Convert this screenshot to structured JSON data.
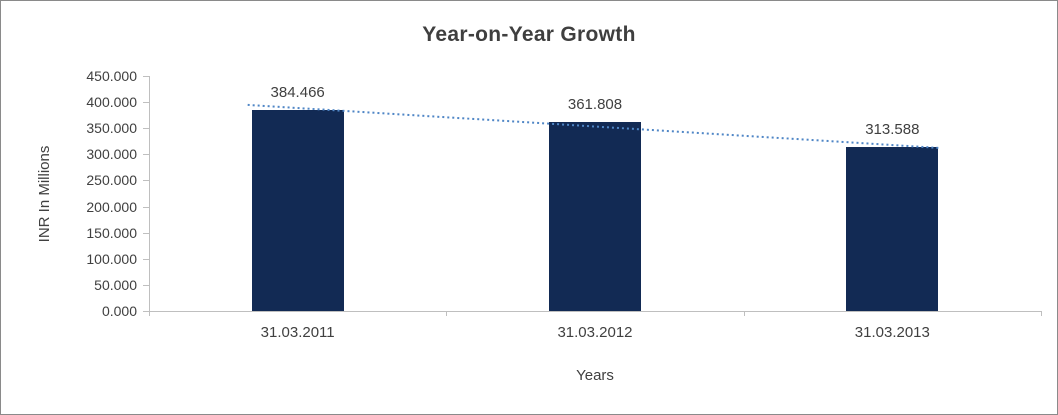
{
  "chart_data": {
    "type": "bar",
    "title": "Year-on-Year Growth",
    "categories": [
      "31.03.2011",
      "31.03.2012",
      "31.03.2013"
    ],
    "values": [
      384.466,
      361.808,
      313.588
    ],
    "value_labels": [
      "384.466",
      "361.808",
      "313.588"
    ],
    "xlabel": "Years",
    "ylabel": "INR In Millions",
    "ylim": [
      0,
      450
    ],
    "ytick_step": 50,
    "ytick_labels": [
      "450.000",
      "400.000",
      "350.000",
      "300.000",
      "250.000",
      "200.000",
      "150.000",
      "100.000",
      "50.000",
      "0.000"
    ],
    "grid": false,
    "legend": "none",
    "trendline": {
      "type": "linear",
      "style": "dotted"
    },
    "colors": {
      "bar": "#122A54",
      "trendline": "#4F86C6",
      "title_text": "#3F3F3F",
      "axis_text": "#404040",
      "axis_line": "#BFBFBF",
      "frame_border": "#8A8A8A",
      "background": "#FFFFFF"
    }
  }
}
